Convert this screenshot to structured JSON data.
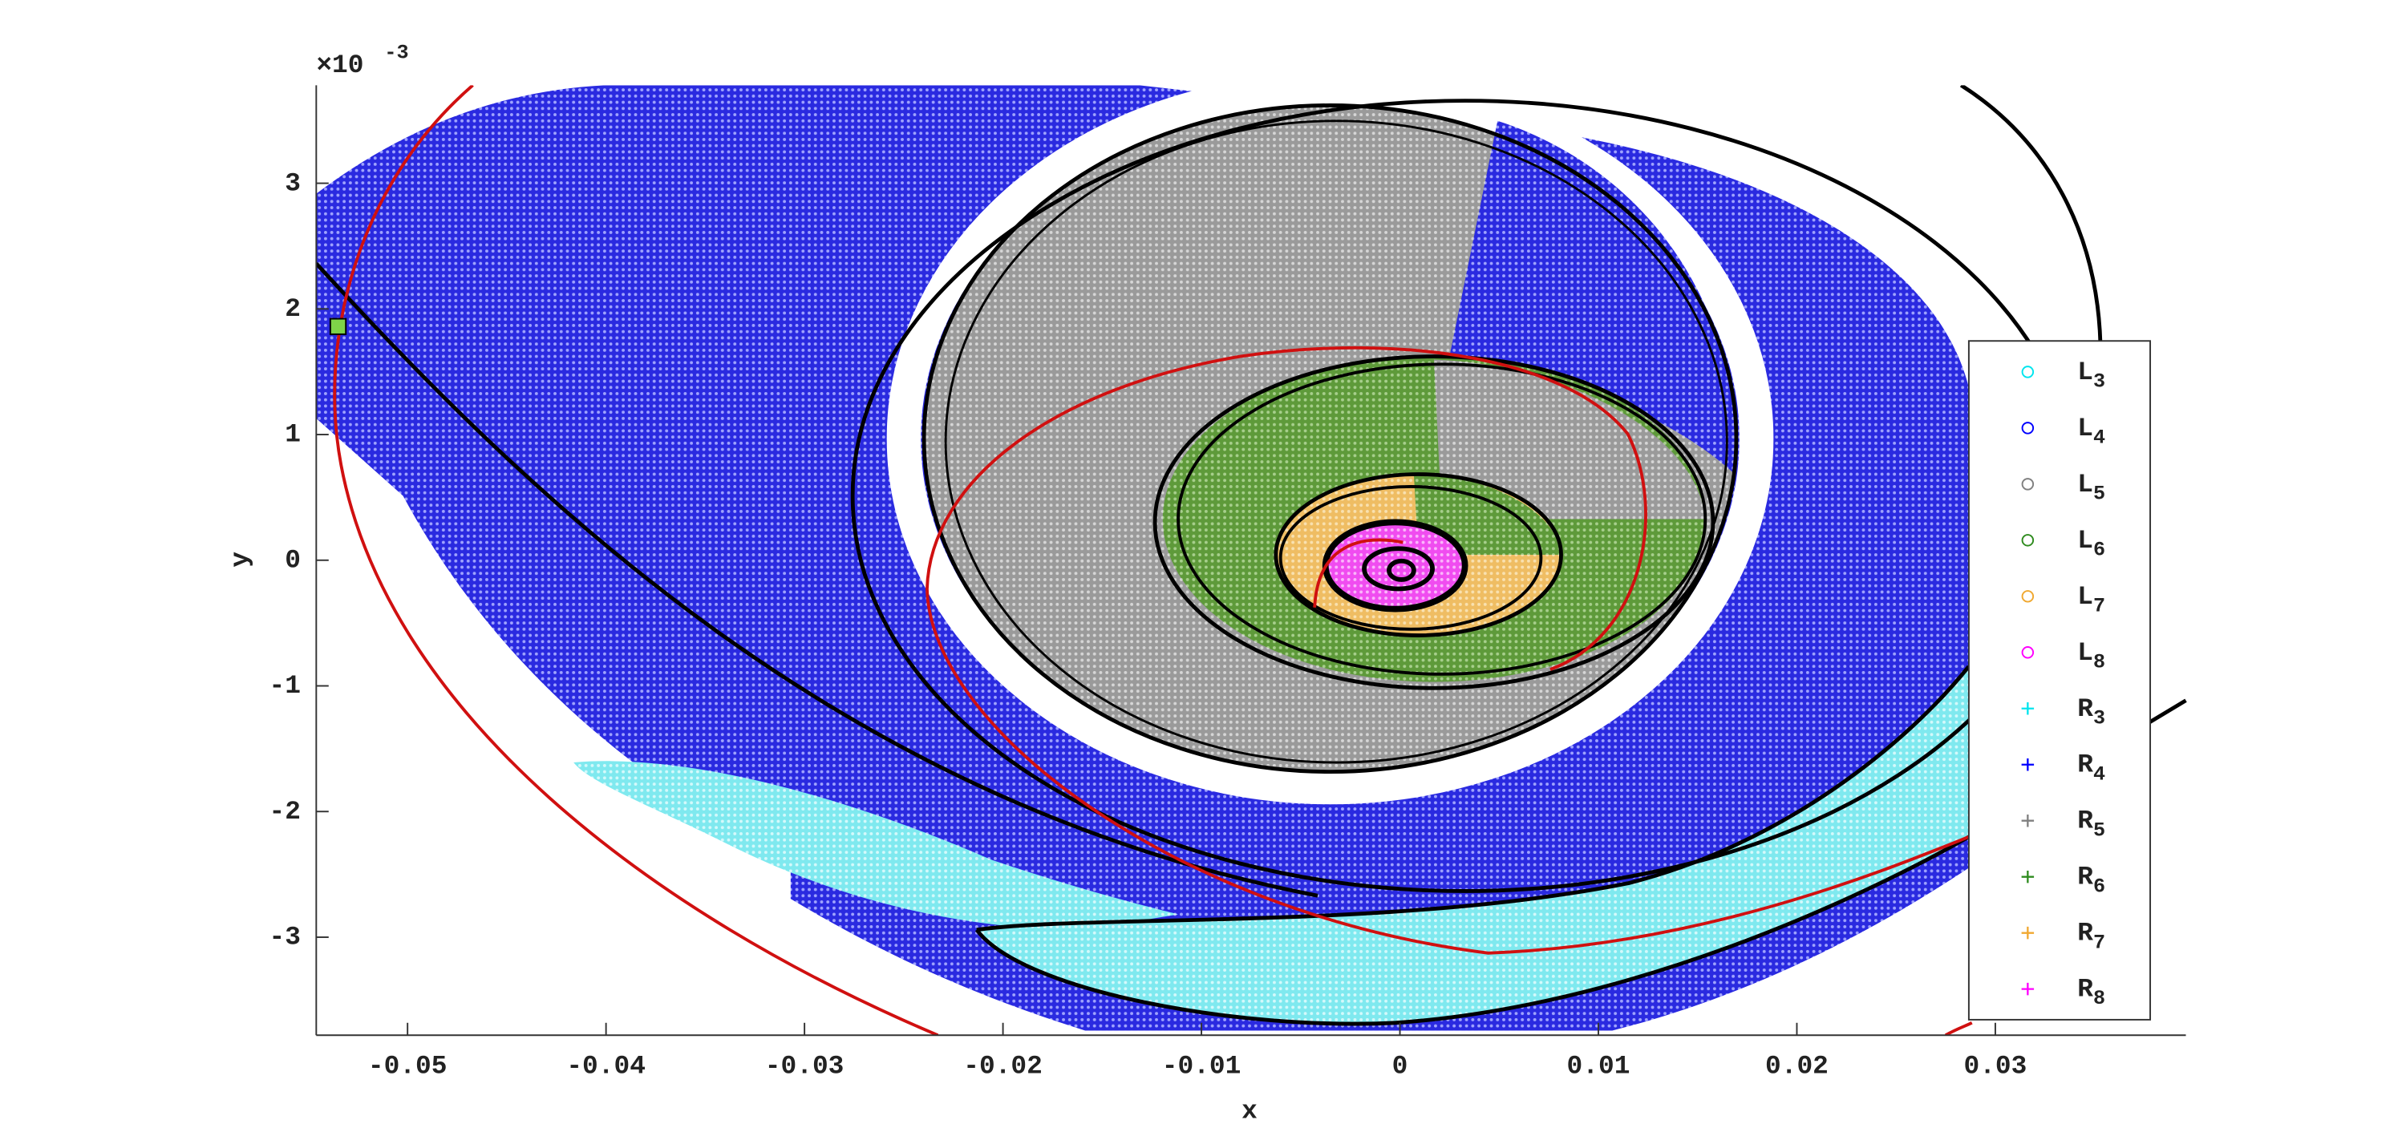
{
  "chart_data": {
    "type": "scatter",
    "x_label": "x",
    "y_label": "y",
    "y_scale_base": "×10",
    "y_scale_exponent": "-3",
    "xlim": [
      -0.0546,
      0.0396
    ],
    "ylim": [
      -0.00378,
      0.00378
    ],
    "xticks": [
      -0.05,
      -0.04,
      -0.03,
      -0.02,
      -0.01,
      0,
      0.01,
      0.02,
      0.03
    ],
    "yticks": [
      {
        "value": -0.003,
        "label": "-3"
      },
      {
        "value": -0.002,
        "label": "-2"
      },
      {
        "value": -0.001,
        "label": "-1"
      },
      0,
      {
        "value": 0.001,
        "label": "1"
      },
      {
        "value": 0.002,
        "label": "2"
      },
      {
        "value": 0.003,
        "label": "3"
      }
    ],
    "legend_position": "right",
    "series": [
      {
        "name": "L3",
        "color": "#00e5ee",
        "marker": "circle"
      },
      {
        "name": "L4",
        "color": "#0000ff",
        "marker": "circle"
      },
      {
        "name": "L5",
        "color": "#808080",
        "marker": "circle"
      },
      {
        "name": "L6",
        "color": "#2e8b1e",
        "marker": "circle"
      },
      {
        "name": "L7",
        "color": "#f0a830",
        "marker": "circle"
      },
      {
        "name": "L8",
        "color": "#ff00ff",
        "marker": "circle"
      },
      {
        "name": "R3",
        "color": "#00e5ee",
        "marker": "plus"
      },
      {
        "name": "R4",
        "color": "#0000ff",
        "marker": "plus"
      },
      {
        "name": "R5",
        "color": "#808080",
        "marker": "plus"
      },
      {
        "name": "R6",
        "color": "#2e8b1e",
        "marker": "plus"
      },
      {
        "name": "R7",
        "color": "#f0a830",
        "marker": "plus"
      },
      {
        "name": "R8",
        "color": "#ff00ff",
        "marker": "plus"
      }
    ],
    "highlight": {
      "x": -0.0535,
      "y": 0.00186,
      "color": "#7ed348"
    }
  }
}
